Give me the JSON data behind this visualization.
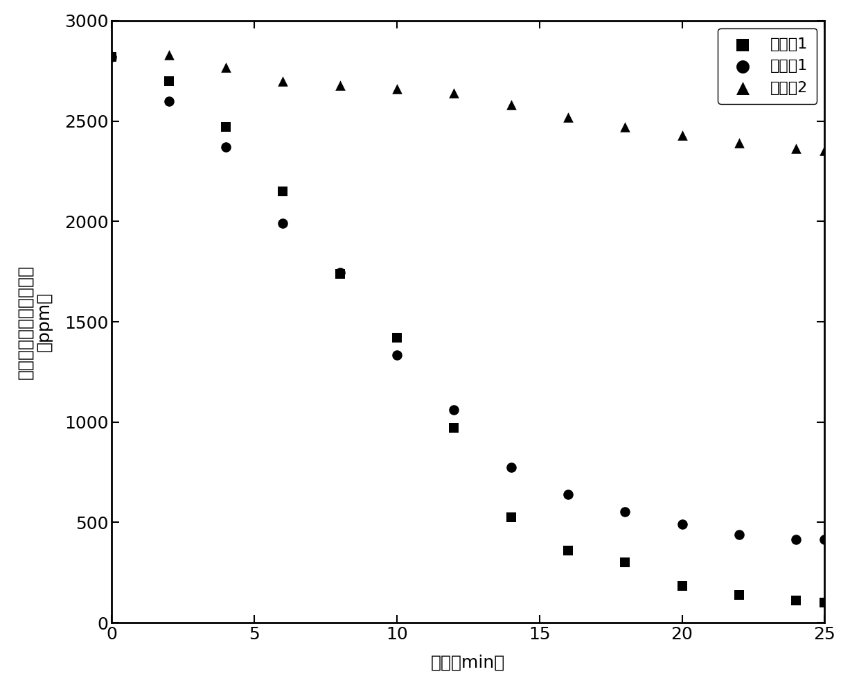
{
  "series": [
    {
      "label": "实施例1",
      "marker": "s",
      "x": [
        0,
        2,
        4,
        6,
        8,
        10,
        12,
        14,
        16,
        18,
        20,
        22,
        24,
        25
      ],
      "y": [
        2820,
        2700,
        2470,
        2150,
        1740,
        1420,
        970,
        525,
        360,
        300,
        185,
        140,
        110,
        100
      ]
    },
    {
      "label": "对比例1",
      "marker": "o",
      "x": [
        0,
        2,
        4,
        6,
        8,
        10,
        12,
        14,
        16,
        18,
        20,
        22,
        24,
        25
      ],
      "y": [
        2820,
        2600,
        2370,
        1990,
        1745,
        1335,
        1060,
        775,
        640,
        555,
        490,
        440,
        415,
        415
      ]
    },
    {
      "label": "对比例2",
      "marker": "^",
      "x": [
        0,
        2,
        4,
        6,
        8,
        10,
        12,
        14,
        16,
        18,
        20,
        22,
        24,
        25
      ],
      "y": [
        2830,
        2830,
        2770,
        2700,
        2680,
        2660,
        2640,
        2580,
        2520,
        2470,
        2430,
        2390,
        2365,
        2355
      ]
    }
  ],
  "xlabel": "时间（min）",
  "ylabel_line1": "多环芳香多环芳香烃浓度",
  "ylabel_line2": "（ppm）",
  "xlim": [
    0,
    25
  ],
  "ylim": [
    0,
    3000
  ],
  "xticks": [
    0,
    5,
    10,
    15,
    20,
    25
  ],
  "yticks": [
    0,
    500,
    1000,
    1500,
    2000,
    2500,
    3000
  ],
  "color": "#000000",
  "marker_size": 110,
  "legend_loc": "upper right",
  "background_color": "#ffffff",
  "spine_color": "#000000",
  "figsize": [
    12.4,
    9.98
  ],
  "dpi": 100,
  "tick_fontsize": 18,
  "label_fontsize": 18,
  "legend_fontsize": 16
}
